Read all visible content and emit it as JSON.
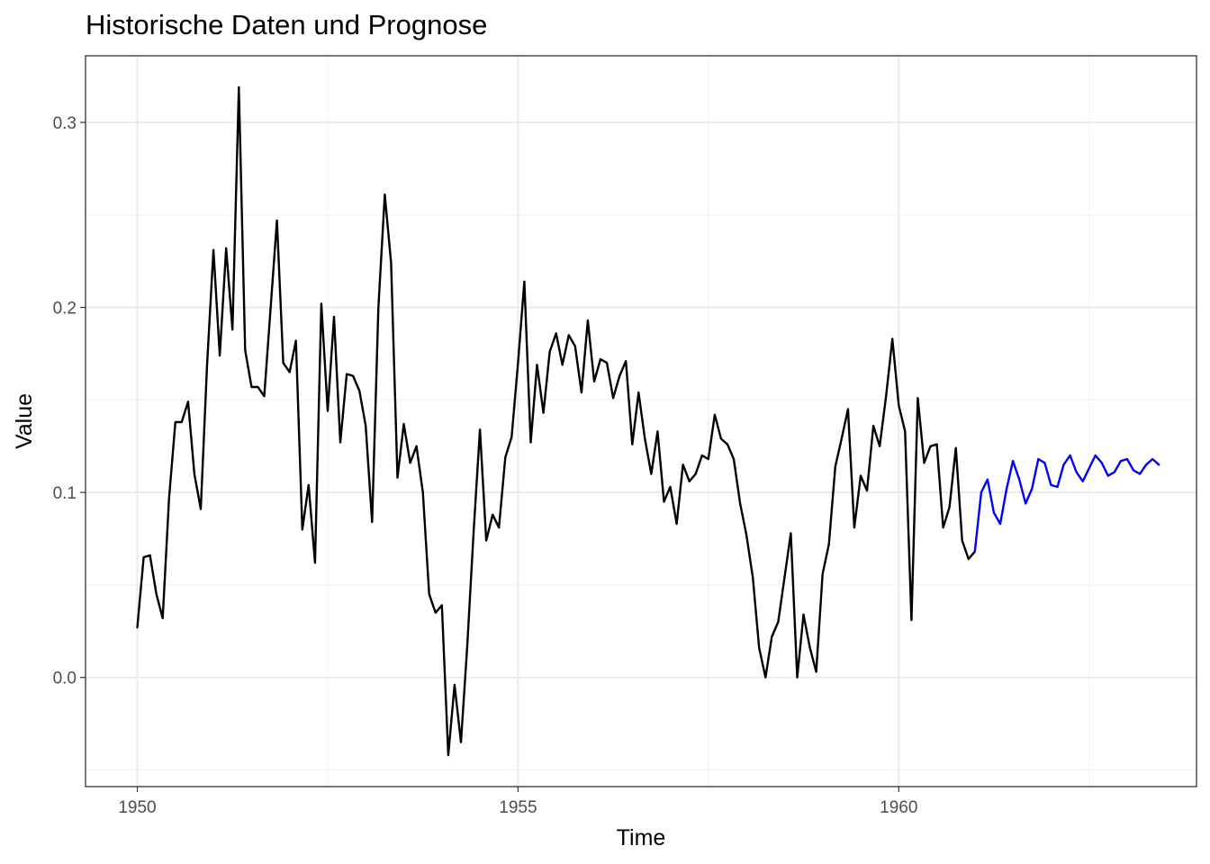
{
  "chart_data": {
    "type": "line",
    "title": "Historische Daten und Prognose",
    "xlabel": "Time",
    "ylabel": "Value",
    "xlim": [
      1949.32,
      1963.91
    ],
    "ylim": [
      -0.059,
      0.336
    ],
    "x_ticks": [
      1950,
      1955,
      1960
    ],
    "x_tick_labels": [
      "1950",
      "1955",
      "1960"
    ],
    "y_ticks": [
      0.0,
      0.1,
      0.2,
      0.3
    ],
    "y_tick_labels": [
      "0.0",
      "0.1",
      "0.2",
      "0.3"
    ],
    "grid": true,
    "legend": "none",
    "x_start": 1950,
    "x_step": 0.08333,
    "series": [
      {
        "color": "#000000",
        "start_index": 0,
        "values": [
          0.027,
          0.065,
          0.066,
          0.045,
          0.032,
          0.097,
          0.138,
          0.138,
          0.149,
          0.11,
          0.091,
          0.169,
          0.231,
          0.174,
          0.232,
          0.188,
          0.319,
          0.177,
          0.157,
          0.157,
          0.152,
          0.199,
          0.247,
          0.17,
          0.165,
          0.182,
          0.08,
          0.104,
          0.062,
          0.202,
          0.144,
          0.195,
          0.127,
          0.164,
          0.163,
          0.155,
          0.136,
          0.084,
          0.2,
          0.261,
          0.224,
          0.108,
          0.137,
          0.116,
          0.125,
          0.1,
          0.045,
          0.035,
          0.039,
          -0.042,
          -0.004,
          -0.035,
          0.017,
          0.079,
          0.134,
          0.074,
          0.088,
          0.081,
          0.119,
          0.13,
          0.17,
          0.214,
          0.127,
          0.169,
          0.143,
          0.176,
          0.186,
          0.169,
          0.185,
          0.179,
          0.154,
          0.193,
          0.16,
          0.172,
          0.17,
          0.151,
          0.163,
          0.171,
          0.126,
          0.154,
          0.129,
          0.11,
          0.133,
          0.095,
          0.103,
          0.083,
          0.115,
          0.106,
          0.11,
          0.12,
          0.118,
          0.142,
          0.129,
          0.126,
          0.118,
          0.094,
          0.077,
          0.054,
          0.016,
          0.0,
          0.022,
          0.03,
          0.054,
          0.078,
          0.0,
          0.034,
          0.016,
          0.003,
          0.056,
          0.072,
          0.114,
          0.129,
          0.145,
          0.081,
          0.109,
          0.101,
          0.136,
          0.125,
          0.152,
          0.183,
          0.147,
          0.133,
          0.031,
          0.151,
          0.116,
          0.125,
          0.126,
          0.081,
          0.092,
          0.124,
          0.074,
          0.064,
          0.068
        ]
      },
      {
        "color": "#0000ff",
        "start_index": 132,
        "values": [
          0.068,
          0.1,
          0.107,
          0.089,
          0.083,
          0.102,
          0.117,
          0.107,
          0.094,
          0.102,
          0.118,
          0.116,
          0.104,
          0.103,
          0.115,
          0.12,
          0.111,
          0.106,
          0.113,
          0.12,
          0.116,
          0.109,
          0.111,
          0.117,
          0.118,
          0.112,
          0.11,
          0.115,
          0.118,
          0.115
        ]
      }
    ]
  }
}
